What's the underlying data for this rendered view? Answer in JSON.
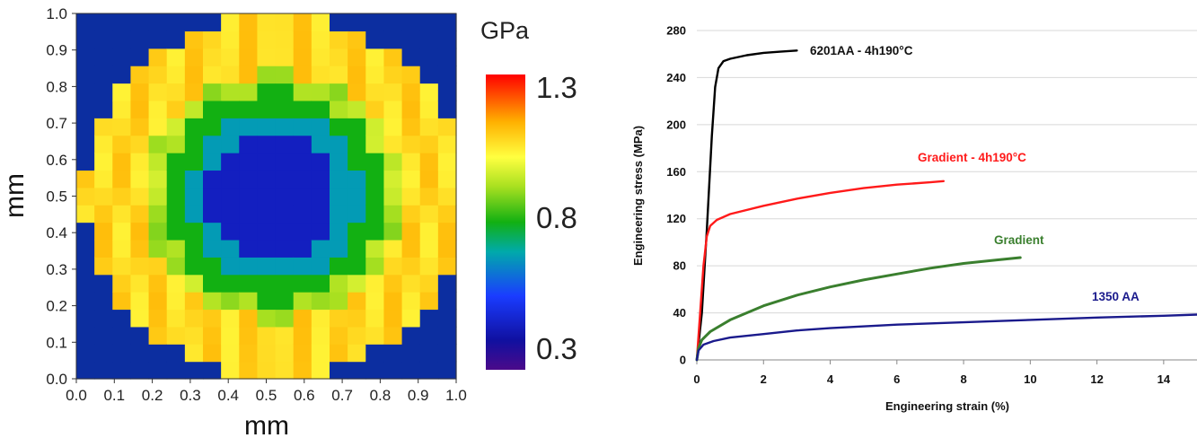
{
  "chart_data": [
    {
      "type": "heatmap",
      "xlabel": "mm",
      "ylabel": "mm",
      "xlim": [
        0.0,
        1.0
      ],
      "ylim": [
        0.0,
        1.0
      ],
      "x_ticks": [
        "0.0",
        "0.1",
        "0.2",
        "0.3",
        "0.4",
        "0.5",
        "0.6",
        "0.7",
        "0.8",
        "0.9",
        "1.0"
      ],
      "y_ticks": [
        "0.0",
        "0.1",
        "0.2",
        "0.3",
        "0.4",
        "0.5",
        "0.6",
        "0.7",
        "0.8",
        "0.9",
        "1.0"
      ],
      "colorbar": {
        "title": "GPa",
        "min": 0.3,
        "max": 1.3,
        "ticks": [
          "1.3",
          "0.8",
          "0.3"
        ]
      },
      "field_description": {
        "background_value": 0.45,
        "disc_center": [
          0.52,
          0.5
        ],
        "disc_radius": 0.5,
        "center_value": 0.45,
        "ring_values": [
          {
            "r_min": 0.0,
            "r_max": 0.17,
            "value": 0.45
          },
          {
            "r_min": 0.17,
            "r_max": 0.23,
            "value": 0.68
          },
          {
            "r_min": 0.23,
            "r_max": 0.29,
            "value": 0.8
          },
          {
            "r_min": 0.29,
            "r_max": 0.34,
            "value": 0.93
          },
          {
            "r_min": 0.34,
            "r_max": 0.5,
            "value": 1.08
          }
        ]
      }
    },
    {
      "type": "line",
      "xlabel": "Engineering strain (%)",
      "ylabel": "Engineering stress (MPa)",
      "xlim": [
        0,
        15
      ],
      "ylim": [
        0,
        280
      ],
      "x_ticks": [
        0,
        2,
        4,
        6,
        8,
        10,
        12,
        14
      ],
      "y_ticks": [
        0,
        40,
        80,
        120,
        160,
        200,
        240,
        280
      ],
      "series": [
        {
          "name": "6201AA - 4h190°C",
          "color": "#000000",
          "points": [
            [
              0,
              0
            ],
            [
              0.15,
              40
            ],
            [
              0.3,
              110
            ],
            [
              0.45,
              190
            ],
            [
              0.55,
              232
            ],
            [
              0.65,
              248
            ],
            [
              0.8,
              254
            ],
            [
              1.0,
              256
            ],
            [
              1.5,
              259
            ],
            [
              2.0,
              261
            ],
            [
              2.5,
              262
            ],
            [
              3.0,
              263
            ]
          ]
        },
        {
          "name": "Gradient - 4h190°C",
          "color": "#ff1a1a",
          "points": [
            [
              0,
              0
            ],
            [
              0.1,
              40
            ],
            [
              0.2,
              80
            ],
            [
              0.3,
              105
            ],
            [
              0.4,
              114
            ],
            [
              0.6,
              119
            ],
            [
              1.0,
              124
            ],
            [
              2.0,
              131
            ],
            [
              3.0,
              137
            ],
            [
              4.0,
              142
            ],
            [
              5.0,
              146
            ],
            [
              6.0,
              149
            ],
            [
              7.0,
              151
            ],
            [
              7.4,
              152
            ]
          ]
        },
        {
          "name": "Gradient",
          "color": "#3a7f2e",
          "points": [
            [
              0,
              0
            ],
            [
              0.05,
              10
            ],
            [
              0.15,
              17
            ],
            [
              0.4,
              24
            ],
            [
              1.0,
              34
            ],
            [
              2.0,
              46
            ],
            [
              3.0,
              55
            ],
            [
              4.0,
              62
            ],
            [
              5.0,
              68
            ],
            [
              6.0,
              73
            ],
            [
              7.0,
              78
            ],
            [
              8.0,
              82
            ],
            [
              9.0,
              85
            ],
            [
              9.7,
              87
            ]
          ]
        },
        {
          "name": "1350 AA",
          "color": "#1a1a8c",
          "points": [
            [
              0,
              0
            ],
            [
              0.05,
              8
            ],
            [
              0.2,
              13
            ],
            [
              0.5,
              16
            ],
            [
              1.0,
              19
            ],
            [
              2.0,
              22
            ],
            [
              3.0,
              25
            ],
            [
              4.0,
              27
            ],
            [
              6.0,
              30
            ],
            [
              8.0,
              32
            ],
            [
              10.0,
              34
            ],
            [
              12.0,
              36
            ],
            [
              14.0,
              37.5
            ],
            [
              15.0,
              38.5
            ]
          ]
        }
      ]
    }
  ]
}
